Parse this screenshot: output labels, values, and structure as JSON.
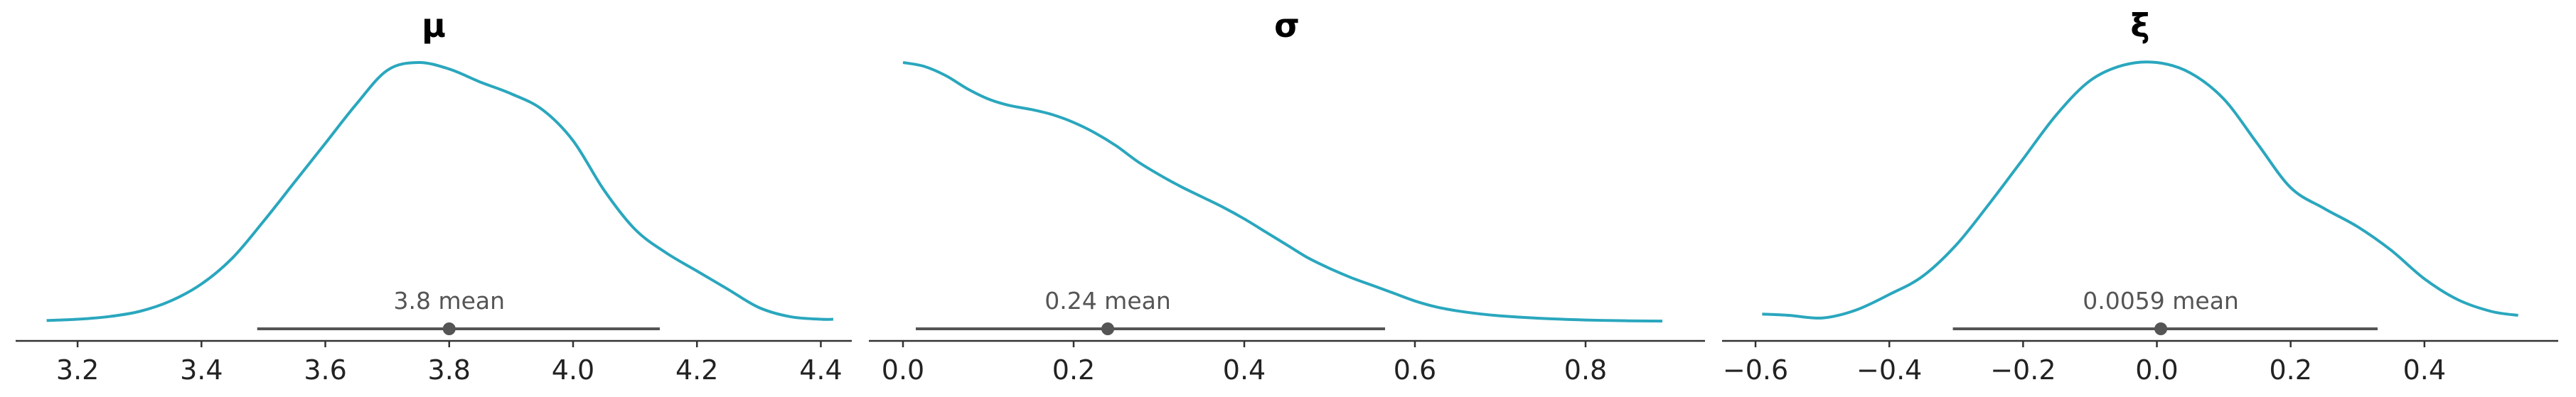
{
  "colors": {
    "kde": "#2aa7be",
    "hdi": "#555555",
    "axis": "#333333",
    "text": "#555555"
  },
  "chart_data": [
    {
      "type": "line",
      "title": "μ",
      "xlabel": "",
      "ylabel": "",
      "xlim": [
        3.1,
        4.45
      ],
      "ticks": [
        3.2,
        3.4,
        3.6,
        3.8,
        4.0,
        4.2,
        4.4
      ],
      "tick_labels": [
        "3.2",
        "3.4",
        "3.6",
        "3.8",
        "4.0",
        "4.2",
        "4.4"
      ],
      "density": {
        "x": [
          3.15,
          3.2,
          3.25,
          3.3,
          3.35,
          3.4,
          3.45,
          3.5,
          3.55,
          3.6,
          3.65,
          3.7,
          3.75,
          3.8,
          3.85,
          3.9,
          3.95,
          4.0,
          4.05,
          4.1,
          4.15,
          4.2,
          4.25,
          4.3,
          4.35,
          4.4,
          4.42
        ],
        "y": [
          0.01,
          0.015,
          0.025,
          0.045,
          0.085,
          0.15,
          0.25,
          0.39,
          0.54,
          0.69,
          0.84,
          0.97,
          1.0,
          0.975,
          0.925,
          0.88,
          0.82,
          0.7,
          0.51,
          0.36,
          0.27,
          0.2,
          0.13,
          0.06,
          0.025,
          0.015,
          0.015
        ]
      },
      "hdi": [
        3.49,
        4.14
      ],
      "mean": 3.8,
      "mean_label": "3.8 mean"
    },
    {
      "type": "line",
      "title": "σ",
      "xlabel": "",
      "ylabel": "",
      "xlim": [
        -0.04,
        0.94
      ],
      "ticks": [
        0.0,
        0.2,
        0.4,
        0.6,
        0.8
      ],
      "tick_labels": [
        "0.0",
        "0.2",
        "0.4",
        "0.6",
        "0.8"
      ],
      "density": {
        "x": [
          0.0,
          0.025,
          0.05,
          0.075,
          0.1,
          0.125,
          0.15,
          0.175,
          0.2,
          0.225,
          0.25,
          0.275,
          0.3,
          0.325,
          0.35,
          0.375,
          0.4,
          0.425,
          0.45,
          0.475,
          0.5,
          0.525,
          0.55,
          0.575,
          0.6,
          0.625,
          0.65,
          0.675,
          0.7,
          0.75,
          0.8,
          0.85,
          0.89
        ],
        "y": [
          1.0,
          0.985,
          0.95,
          0.9,
          0.86,
          0.835,
          0.82,
          0.8,
          0.77,
          0.73,
          0.68,
          0.62,
          0.57,
          0.525,
          0.485,
          0.445,
          0.4,
          0.35,
          0.3,
          0.25,
          0.21,
          0.175,
          0.145,
          0.115,
          0.085,
          0.062,
          0.047,
          0.036,
          0.028,
          0.018,
          0.012,
          0.009,
          0.008
        ]
      },
      "hdi": [
        0.015,
        0.565
      ],
      "mean": 0.24,
      "mean_label": "0.24 mean"
    },
    {
      "type": "line",
      "title": "ξ",
      "xlabel": "",
      "ylabel": "",
      "xlim": [
        -0.65,
        0.6
      ],
      "ticks": [
        -0.6,
        -0.4,
        -0.2,
        0.0,
        0.2,
        0.4
      ],
      "tick_labels": [
        "−0.6",
        "−0.4",
        "−0.2",
        "0.0",
        "0.2",
        "0.4"
      ],
      "density": {
        "x": [
          -0.59,
          -0.55,
          -0.5,
          -0.45,
          -0.4,
          -0.35,
          -0.3,
          -0.25,
          -0.2,
          -0.15,
          -0.1,
          -0.05,
          0.0,
          0.05,
          0.1,
          0.15,
          0.2,
          0.25,
          0.3,
          0.35,
          0.4,
          0.45,
          0.5,
          0.54
        ],
        "y": [
          0.035,
          0.03,
          0.02,
          0.05,
          0.11,
          0.18,
          0.3,
          0.46,
          0.63,
          0.8,
          0.93,
          0.99,
          1.0,
          0.96,
          0.86,
          0.69,
          0.52,
          0.44,
          0.37,
          0.28,
          0.17,
          0.09,
          0.045,
          0.03
        ]
      },
      "hdi": [
        -0.305,
        0.33
      ],
      "mean": 0.0059,
      "mean_label": "0.0059 mean"
    }
  ]
}
